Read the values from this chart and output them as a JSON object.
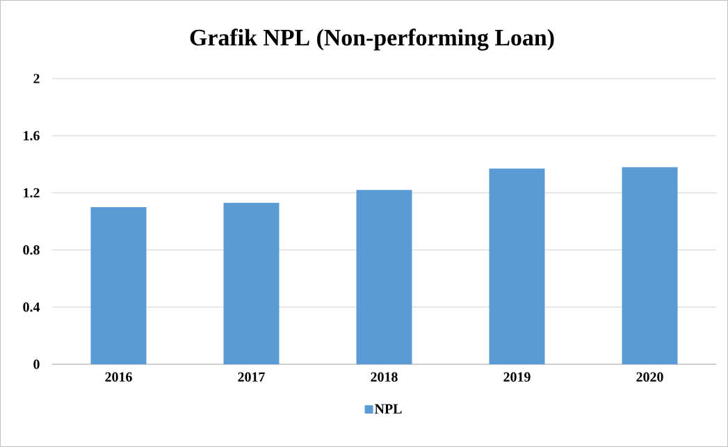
{
  "chart_data": {
    "type": "bar",
    "title": "Grafik NPL (Non-performing Loan)",
    "categories": [
      "2016",
      "2017",
      "2018",
      "2019",
      "2020"
    ],
    "series": [
      {
        "name": "NPL",
        "color": "#5b9bd5",
        "values": [
          1.1,
          1.13,
          1.22,
          1.37,
          1.38
        ]
      }
    ],
    "ylim": [
      0,
      2
    ],
    "yticks": [
      0,
      0.4,
      0.8,
      1.2,
      1.6,
      2
    ],
    "grid": "y",
    "legend": "bottom"
  }
}
